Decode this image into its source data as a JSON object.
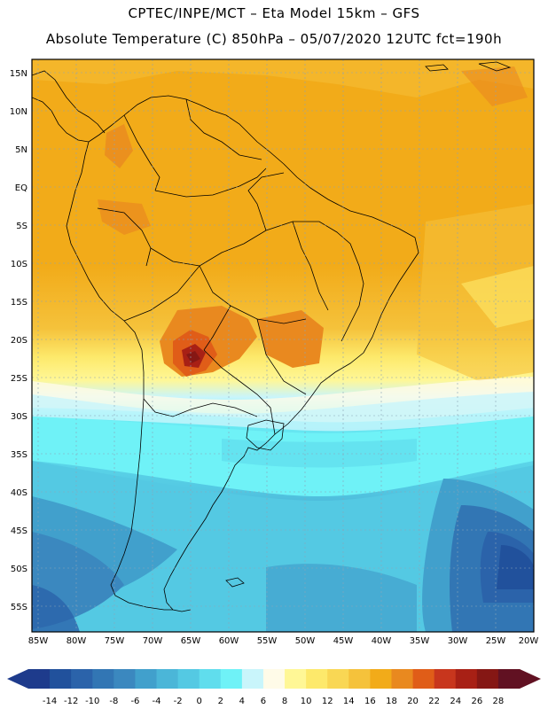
{
  "header": {
    "line1": "CPTEC/INPE/MCT –  Eta Model 15km – GFS",
    "line2": "Absolute Temperature (C) 850hPa – 05/07/2020 12UTC fct=190h"
  },
  "map": {
    "lat_labels": [
      "15N",
      "10N",
      "5N",
      "EQ",
      "5S",
      "10S",
      "15S",
      "20S",
      "25S",
      "30S",
      "35S",
      "40S",
      "45S",
      "50S",
      "55S"
    ],
    "lon_labels": [
      "85W",
      "80W",
      "75W",
      "70W",
      "65W",
      "60W",
      "55W",
      "50W",
      "45W",
      "40W",
      "35W",
      "30W",
      "25W",
      "20W"
    ]
  },
  "colorbar": {
    "labels": [
      "-14",
      "-12",
      "-10",
      "-8",
      "-6",
      "-4",
      "-2",
      "0",
      "2",
      "4",
      "6",
      "8",
      "10",
      "12",
      "14",
      "16",
      "18",
      "20",
      "22",
      "24",
      "26",
      "28"
    ],
    "colors": [
      "#1e3b8c",
      "#21519c",
      "#2b63aa",
      "#3276b4",
      "#3b88bf",
      "#41a0cc",
      "#4bb6d8",
      "#54c9e3",
      "#60dded",
      "#6ff2f7",
      "#c9f5fb",
      "#fffbe8",
      "#fff796",
      "#fde96b",
      "#f9d754",
      "#f5c23b",
      "#f2ab19",
      "#e9891f",
      "#e05d18",
      "#c8361d",
      "#a82015",
      "#851714",
      "#611122"
    ]
  },
  "style": {
    "land_warm": "#f2ab19",
    "ocean_cold": "#3b88bf"
  }
}
